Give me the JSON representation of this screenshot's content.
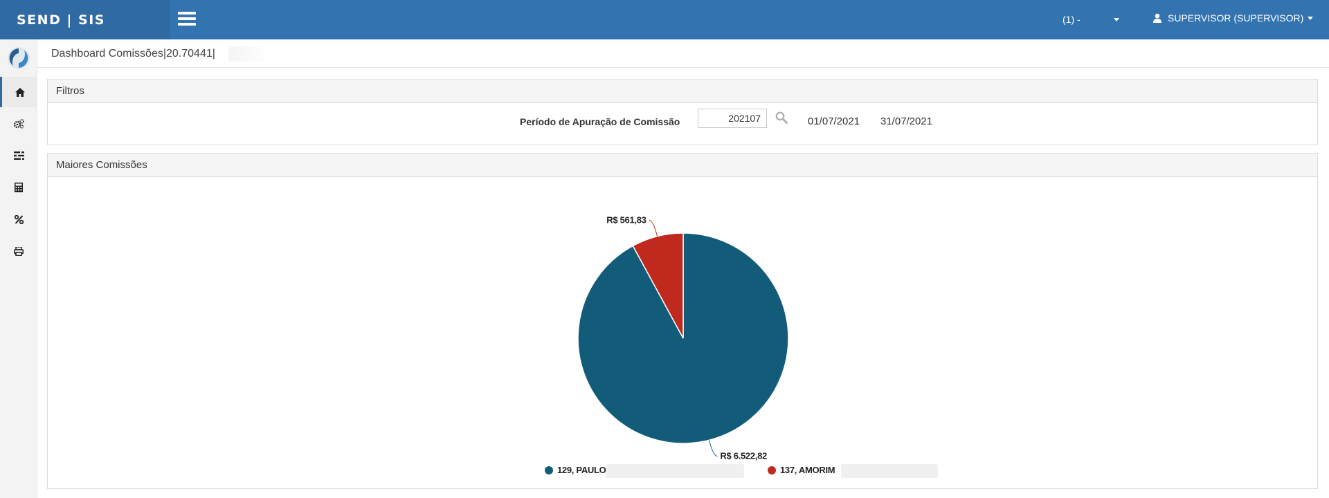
{
  "header": {
    "brand": "SEND | SIS",
    "company": "(1) -",
    "user": "SUPERVISOR (SUPERVISOR)"
  },
  "sidebar": {
    "items": [
      {
        "icon": "home-icon"
      },
      {
        "icon": "cogs-icon"
      },
      {
        "icon": "list-settings-icon"
      },
      {
        "icon": "calculator-icon"
      },
      {
        "icon": "percent-icon"
      },
      {
        "icon": "print-icon"
      }
    ]
  },
  "breadcrumb": "Dashboard Comissões|20.70441|",
  "filters": {
    "title": "Filtros",
    "period_label": "Período de Apuração de Comissão",
    "period_value": "202107",
    "date_start": "01/07/2021",
    "date_end": "31/07/2021"
  },
  "chart_panel": {
    "title": "Maiores Comissões"
  },
  "chart_data": {
    "type": "pie",
    "series": [
      {
        "name": "129, PAULO",
        "value": 6522.82,
        "label": "R$ 6.522,82",
        "color": "#125c7a"
      },
      {
        "name": "137, AMORIM",
        "value": 561.83,
        "label": "R$ 561,83",
        "color": "#c0291e"
      }
    ],
    "legend_position": "bottom"
  },
  "colors": {
    "topbar": "#3374b0",
    "brand_bg": "#2f6aa3"
  }
}
